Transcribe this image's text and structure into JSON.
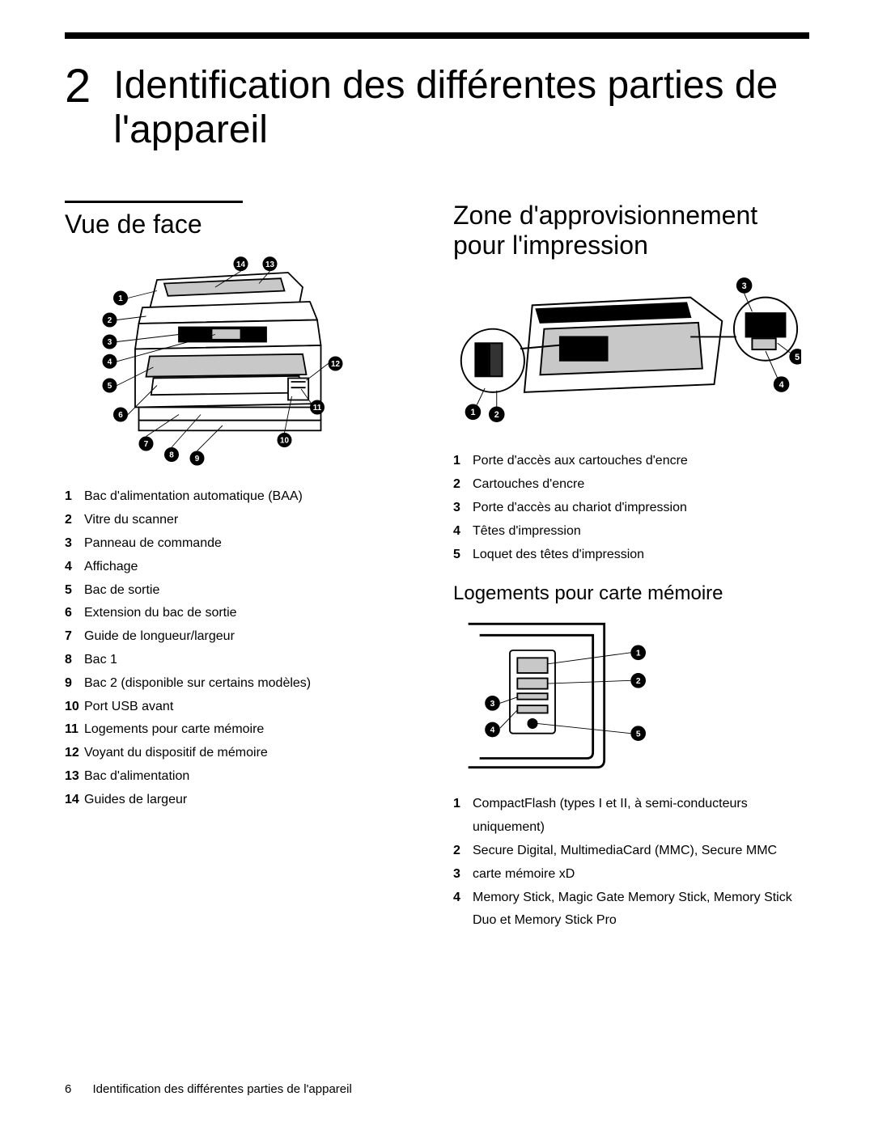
{
  "chapter_number": "2",
  "chapter_title": "Identification des différentes parties de l'appareil",
  "left": {
    "section_title": "Vue de face",
    "legend": [
      {
        "n": "1",
        "t": "Bac d'alimentation automatique (BAA)"
      },
      {
        "n": "2",
        "t": "Vitre du scanner"
      },
      {
        "n": "3",
        "t": "Panneau de commande"
      },
      {
        "n": "4",
        "t": "Affichage"
      },
      {
        "n": "5",
        "t": "Bac de sortie"
      },
      {
        "n": "6",
        "t": "Extension du bac de sortie"
      },
      {
        "n": "7",
        "t": "Guide de longueur/largeur"
      },
      {
        "n": "8",
        "t": "Bac 1"
      },
      {
        "n": "9",
        "t": "Bac 2 (disponible sur certains modèles)"
      },
      {
        "n": "10",
        "t": "Port USB avant"
      },
      {
        "n": "11",
        "t": "Logements pour carte mémoire"
      },
      {
        "n": "12",
        "t": "Voyant du dispositif de mémoire"
      },
      {
        "n": "13",
        "t": "Bac d'alimentation"
      },
      {
        "n": "14",
        "t": "Guides de largeur"
      }
    ]
  },
  "right_top": {
    "section_title": "Zone d'approvisionnement pour l'impression",
    "legend": [
      {
        "n": "1",
        "t": "Porte d'accès aux cartouches d'encre"
      },
      {
        "n": "2",
        "t": "Cartouches d'encre"
      },
      {
        "n": "3",
        "t": "Porte d'accès au chariot d'impression"
      },
      {
        "n": "4",
        "t": "Têtes d'impression"
      },
      {
        "n": "5",
        "t": "Loquet des têtes d'impression"
      }
    ]
  },
  "right_bottom": {
    "section_title": "Logements pour carte mémoire",
    "legend": [
      {
        "n": "1",
        "t": "CompactFlash (types I et II, à semi-conducteurs uniquement)"
      },
      {
        "n": "2",
        "t": "Secure Digital, MultimediaCard (MMC), Secure MMC"
      },
      {
        "n": "3",
        "t": "carte mémoire xD"
      },
      {
        "n": "4",
        "t": "Memory Stick, Magic Gate Memory Stick, Memory Stick Duo et Memory Stick Pro"
      }
    ]
  },
  "footer": {
    "page": "6",
    "text": "Identification des différentes parties de l'appareil"
  },
  "style": {
    "diagram_stroke": "#000",
    "diagram_fill_dark": "#000",
    "diagram_fill_light": "#fff",
    "diagram_fill_gray": "#c8c8c8"
  }
}
